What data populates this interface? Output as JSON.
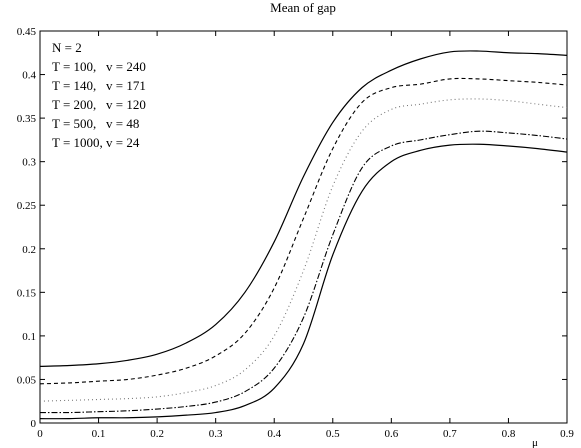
{
  "chart_data": {
    "type": "line",
    "title": "Mean of gap",
    "xlabel": "μ",
    "ylabel": "",
    "xlim": [
      0,
      0.9
    ],
    "ylim": [
      0,
      0.45
    ],
    "x_ticks": [
      "0",
      "0.1",
      "0.2",
      "0.3",
      "0.4",
      "0.5",
      "0.6",
      "0.7",
      "0.8",
      "0.9"
    ],
    "y_ticks": [
      "0",
      "0.05",
      "0.1",
      "0.15",
      "0.2",
      "0.25",
      "0.3",
      "0.35",
      "0.4",
      "0.45"
    ],
    "grid": false,
    "legend_placement": "top-left",
    "legend_header": "N = 2",
    "legend": [
      "T = 100,   v = 240",
      "T = 140,   v = 171",
      "T = 200,   v = 120",
      "T = 500,   v = 48",
      "T = 1000, v = 24"
    ],
    "x": [
      0,
      0.05,
      0.1,
      0.15,
      0.2,
      0.25,
      0.3,
      0.35,
      0.4,
      0.45,
      0.5,
      0.55,
      0.6,
      0.65,
      0.7,
      0.75,
      0.8,
      0.85,
      0.9
    ],
    "series": [
      {
        "style": "solid",
        "values": [
          0.065,
          0.066,
          0.068,
          0.072,
          0.079,
          0.092,
          0.113,
          0.15,
          0.208,
          0.283,
          0.345,
          0.385,
          0.405,
          0.418,
          0.426,
          0.427,
          0.425,
          0.424,
          0.422
        ]
      },
      {
        "style": "dashed",
        "values": [
          0.045,
          0.046,
          0.048,
          0.05,
          0.055,
          0.063,
          0.077,
          0.103,
          0.155,
          0.235,
          0.315,
          0.368,
          0.385,
          0.389,
          0.395,
          0.395,
          0.393,
          0.391,
          0.388
        ]
      },
      {
        "style": "dotted",
        "values": [
          0.025,
          0.026,
          0.027,
          0.028,
          0.03,
          0.035,
          0.043,
          0.061,
          0.1,
          0.175,
          0.272,
          0.335,
          0.36,
          0.366,
          0.371,
          0.372,
          0.37,
          0.366,
          0.362
        ]
      },
      {
        "style": "dashdot",
        "values": [
          0.012,
          0.012,
          0.013,
          0.014,
          0.016,
          0.019,
          0.024,
          0.036,
          0.063,
          0.121,
          0.216,
          0.293,
          0.318,
          0.325,
          0.331,
          0.335,
          0.333,
          0.33,
          0.326
        ]
      },
      {
        "style": "solid",
        "values": [
          0.005,
          0.005,
          0.006,
          0.006,
          0.007,
          0.009,
          0.012,
          0.02,
          0.04,
          0.091,
          0.193,
          0.266,
          0.3,
          0.313,
          0.319,
          0.32,
          0.318,
          0.315,
          0.311
        ]
      }
    ]
  }
}
